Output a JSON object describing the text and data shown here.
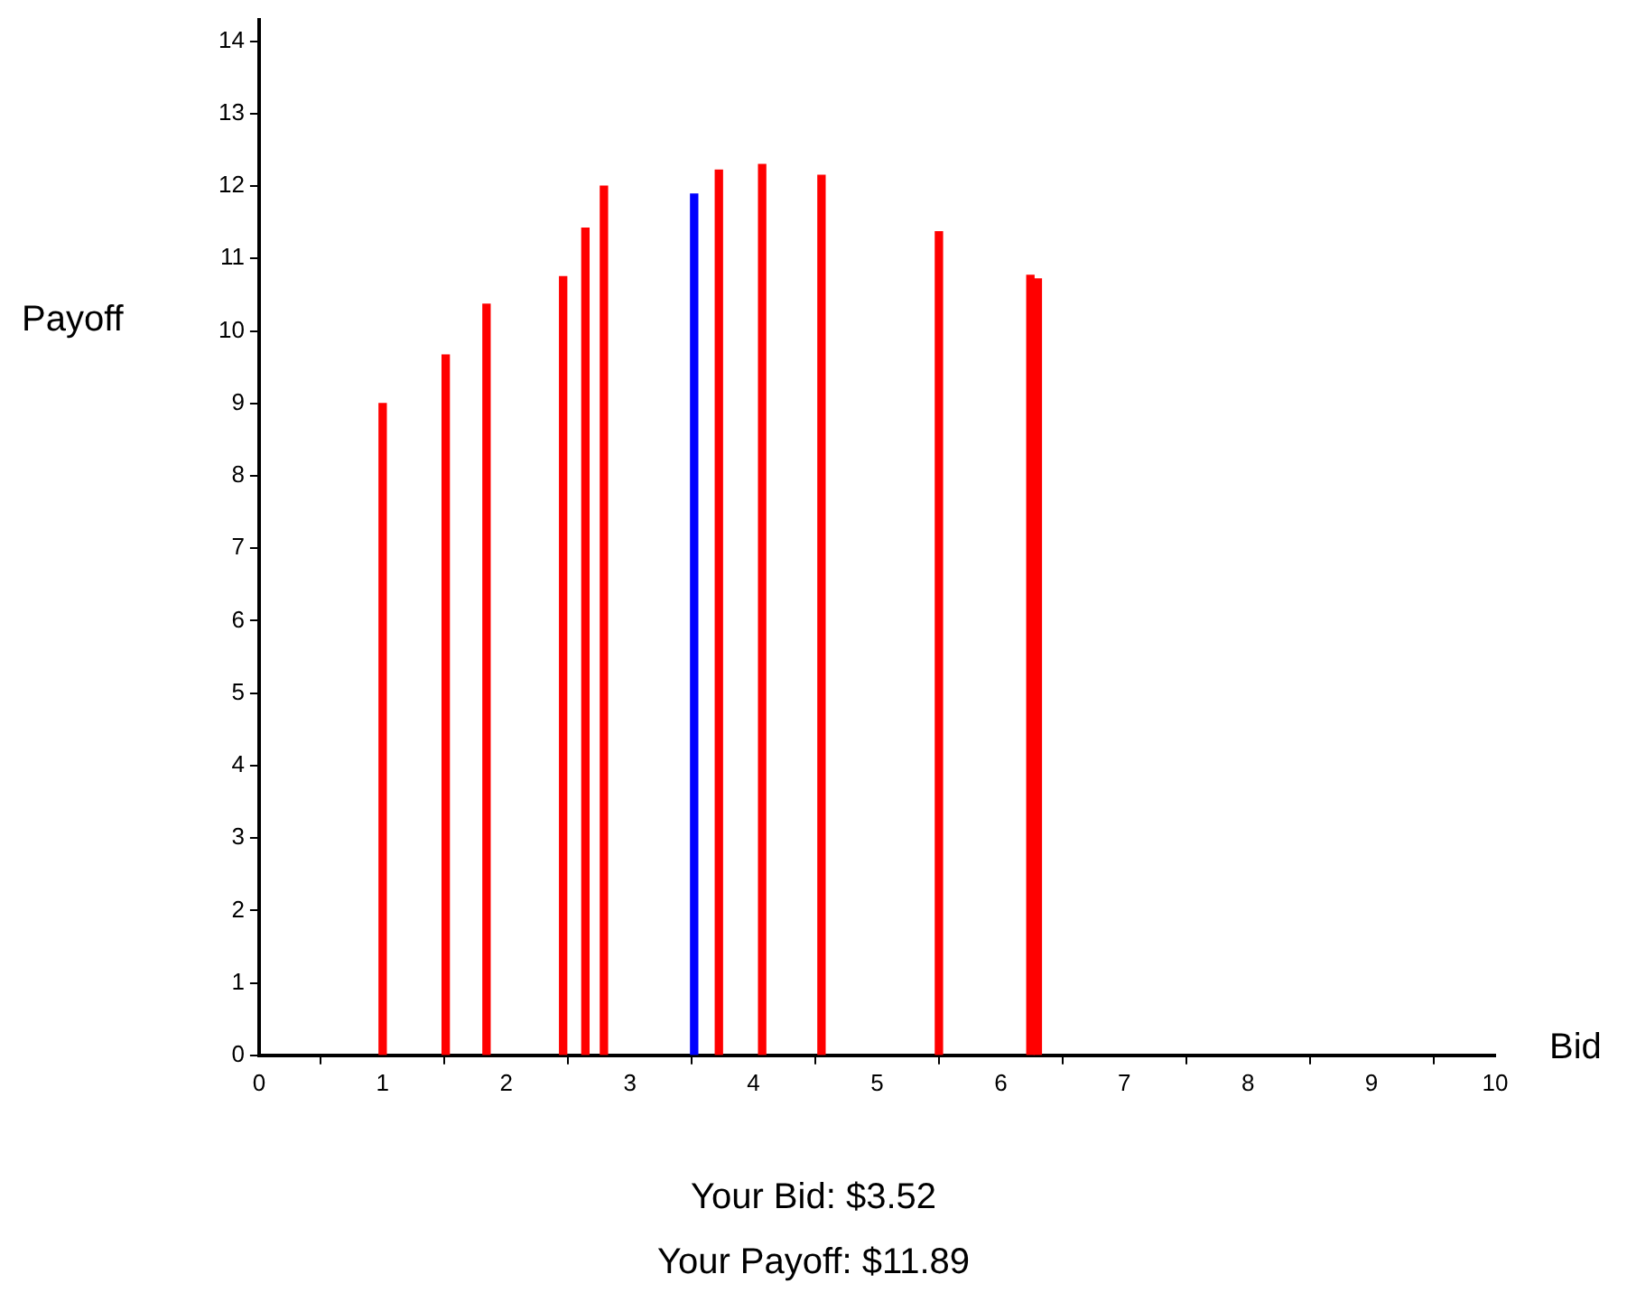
{
  "chart_data": {
    "type": "bar",
    "xlabel": "Bid",
    "ylabel": "Payoff",
    "series": [
      {
        "color": "#ff0000",
        "x": [
          1.0,
          1.51,
          1.84,
          2.46,
          2.64,
          2.79,
          3.72,
          4.07,
          4.55,
          5.5,
          6.24,
          6.3
        ],
        "values": [
          9.0,
          9.67,
          10.37,
          10.75,
          11.42,
          12.0,
          12.22,
          12.3,
          12.15,
          11.37,
          10.77,
          10.72
        ]
      },
      {
        "color": "#0000ff",
        "x": [
          3.52
        ],
        "values": [
          11.89
        ]
      }
    ],
    "xlim": [
      0,
      10
    ],
    "xticks": [
      0,
      1,
      2,
      3,
      4,
      5,
      6,
      7,
      8,
      9,
      10
    ],
    "ylim": [
      0,
      14.3
    ],
    "yticks": [
      0,
      1,
      2,
      3,
      4,
      5,
      6,
      7,
      8,
      9,
      10,
      11,
      12,
      13,
      14
    ],
    "grid": false,
    "legend": false,
    "annotations": [
      "Your Bid: $3.52",
      "Your Payoff: $11.89"
    ]
  }
}
